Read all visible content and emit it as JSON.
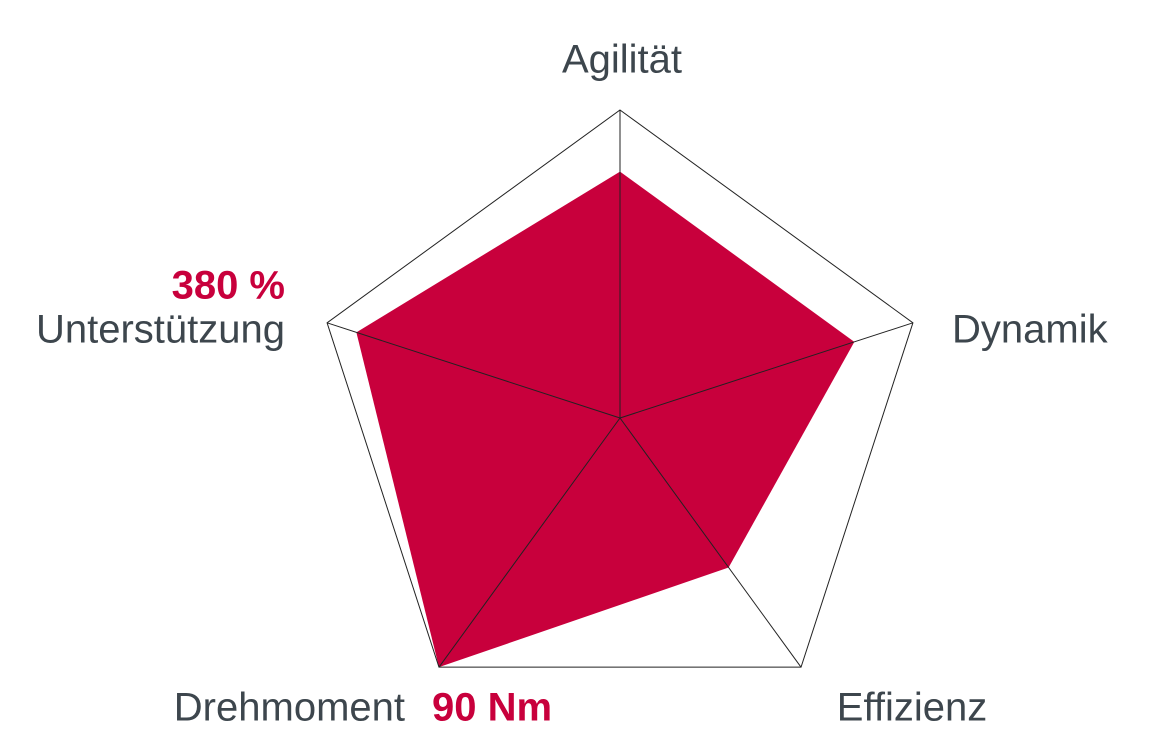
{
  "chart_data": {
    "type": "radar",
    "categories": [
      "Agilität",
      "Dynamik",
      "Effizienz",
      "Drehmoment",
      "Unterstützung"
    ],
    "values": [
      80,
      80,
      60,
      100,
      90
    ],
    "color": "#c8003c",
    "rlim": [
      0,
      100
    ],
    "annotations": [
      "380 %",
      "90 Nm"
    ]
  }
}
